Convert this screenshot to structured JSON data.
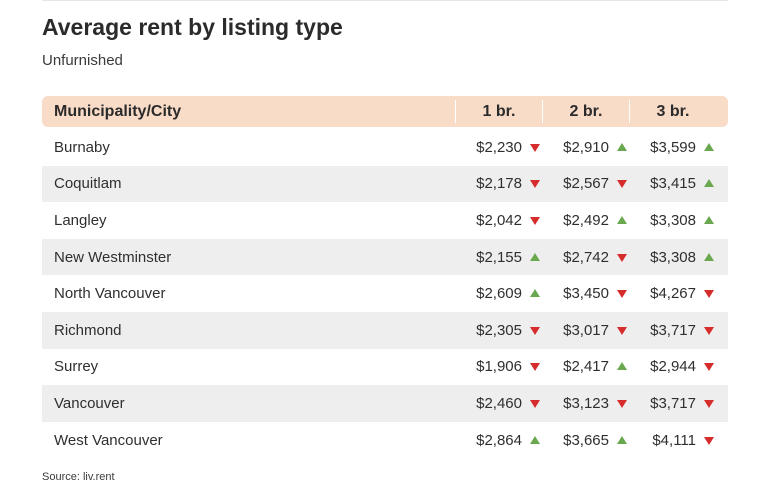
{
  "chart_data": {
    "type": "table",
    "title": "Average rent by listing type",
    "subtitle": "Unfurnished",
    "columns": [
      "Municipality/City",
      "1 br.",
      "2 br.",
      "3 br."
    ],
    "rows": [
      {
        "city": "Burnaby",
        "cells": [
          {
            "value": "$2,230",
            "trend": "down"
          },
          {
            "value": "$2,910",
            "trend": "up"
          },
          {
            "value": "$3,599",
            "trend": "up"
          }
        ]
      },
      {
        "city": "Coquitlam",
        "cells": [
          {
            "value": "$2,178",
            "trend": "down"
          },
          {
            "value": "$2,567",
            "trend": "down"
          },
          {
            "value": "$3,415",
            "trend": "up"
          }
        ]
      },
      {
        "city": "Langley",
        "cells": [
          {
            "value": "$2,042",
            "trend": "down"
          },
          {
            "value": "$2,492",
            "trend": "up"
          },
          {
            "value": "$3,308",
            "trend": "up"
          }
        ]
      },
      {
        "city": "New Westminster",
        "cells": [
          {
            "value": "$2,155",
            "trend": "up"
          },
          {
            "value": "$2,742",
            "trend": "down"
          },
          {
            "value": "$3,308",
            "trend": "up"
          }
        ]
      },
      {
        "city": "North Vancouver",
        "cells": [
          {
            "value": "$2,609",
            "trend": "up"
          },
          {
            "value": "$3,450",
            "trend": "down"
          },
          {
            "value": "$4,267",
            "trend": "down"
          }
        ]
      },
      {
        "city": "Richmond",
        "cells": [
          {
            "value": "$2,305",
            "trend": "down"
          },
          {
            "value": "$3,017",
            "trend": "down"
          },
          {
            "value": "$3,717",
            "trend": "down"
          }
        ]
      },
      {
        "city": "Surrey",
        "cells": [
          {
            "value": "$1,906",
            "trend": "down"
          },
          {
            "value": "$2,417",
            "trend": "up"
          },
          {
            "value": "$2,944",
            "trend": "down"
          }
        ]
      },
      {
        "city": "Vancouver",
        "cells": [
          {
            "value": "$2,460",
            "trend": "down"
          },
          {
            "value": "$3,123",
            "trend": "down"
          },
          {
            "value": "$3,717",
            "trend": "down"
          }
        ]
      },
      {
        "city": "West Vancouver",
        "cells": [
          {
            "value": "$2,864",
            "trend": "up"
          },
          {
            "value": "$3,665",
            "trend": "up"
          },
          {
            "value": "$4,111",
            "trend": "down"
          }
        ]
      }
    ],
    "source": "Source: liv.rent",
    "colors": {
      "header_bg": "#f9dcc8",
      "stripe": "#eeeeee",
      "up": "#6aa84f",
      "down": "#d62c2c"
    }
  }
}
